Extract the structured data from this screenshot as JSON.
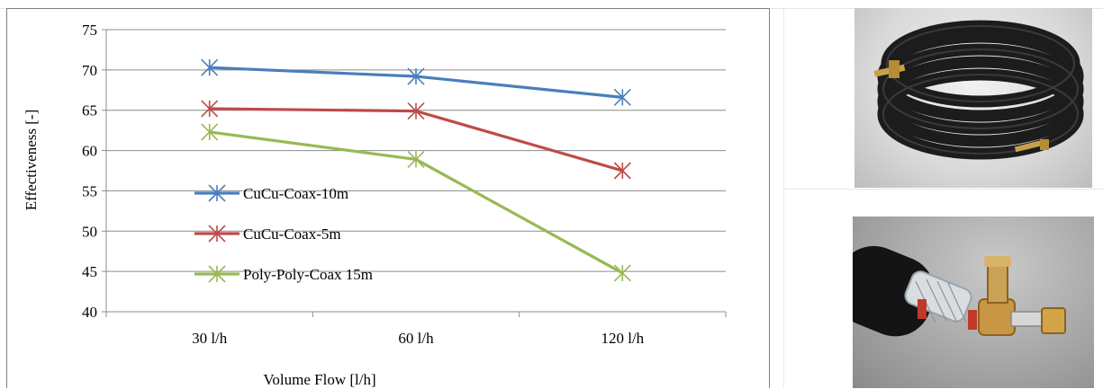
{
  "chart_data": {
    "type": "line",
    "categories": [
      "30 l/h",
      "60 l/h",
      "120 l/h"
    ],
    "xlabel": "Volume Flow [l/h]",
    "ylabel": "Effectiveness  [-]",
    "ylim": [
      40,
      75
    ],
    "yticks": [
      40,
      45,
      50,
      55,
      60,
      65,
      70,
      75
    ],
    "grid": true,
    "legend_position": "center-left",
    "series": [
      {
        "name": "CuCu-Coax-10m",
        "color": "#4a7ebb",
        "values": [
          70.3,
          69.2,
          66.6
        ]
      },
      {
        "name": "CuCu-Coax-5m",
        "color": "#be4b48",
        "values": [
          65.2,
          64.9,
          57.5
        ]
      },
      {
        "name": "Poly-Poly-Coax 15m",
        "color": "#98b954",
        "values": [
          62.3,
          58.9,
          44.8
        ]
      }
    ]
  },
  "images": [
    {
      "name": "coiled-coax-tube-photo"
    },
    {
      "name": "coax-connector-photo"
    }
  ]
}
